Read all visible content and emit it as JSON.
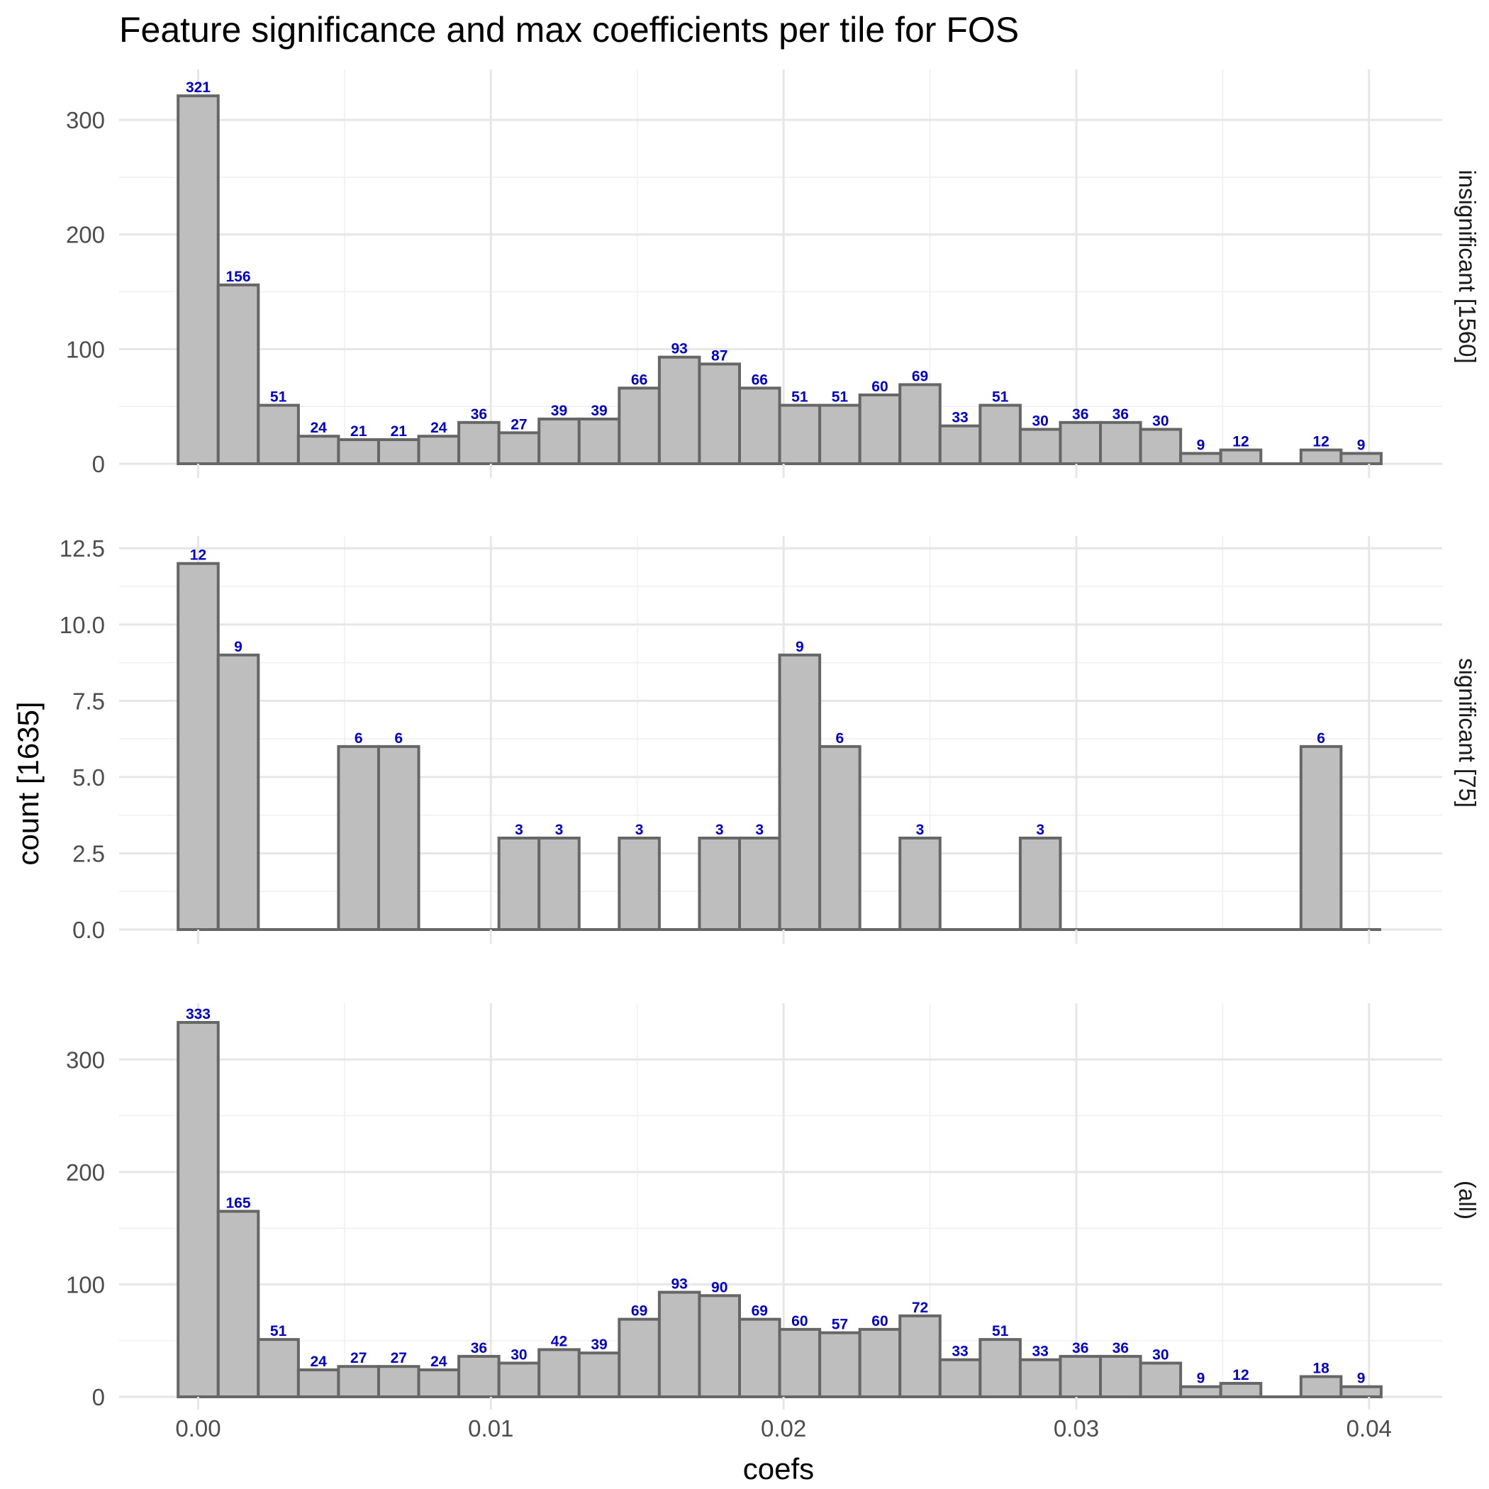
{
  "chart_data": {
    "type": "bar",
    "title": "Feature significance and max coefficients per tile for FOS",
    "xlabel": "coefs",
    "ylabel": "count [1635]",
    "x_ticks": [
      "0.00",
      "0.01",
      "0.02",
      "0.03",
      "0.04"
    ],
    "x_tick_values": [
      0,
      0.01,
      0.02,
      0.03,
      0.04
    ],
    "xlim": [
      -0.0027,
      0.0425
    ],
    "binwidth": 0.00137,
    "bin_centers": [
      0.0,
      0.00137,
      0.00274,
      0.00411,
      0.00548,
      0.00685,
      0.00822,
      0.00959,
      0.01096,
      0.01233,
      0.0137,
      0.01507,
      0.01644,
      0.01781,
      0.01918,
      0.02055,
      0.02192,
      0.02329,
      0.02466,
      0.02603,
      0.0274,
      0.02877,
      0.03014,
      0.03151,
      0.03288,
      0.03425,
      0.03562,
      0.03699,
      0.03836,
      0.03973
    ],
    "grid": true,
    "panels": [
      {
        "strip": "insignificant [1560]",
        "y_ticks": [
          "0",
          "100",
          "200",
          "300"
        ],
        "y_tick_values": [
          0,
          100,
          200,
          300
        ],
        "ylim": [
          0,
          344
        ],
        "values": [
          321,
          156,
          51,
          24,
          21,
          21,
          24,
          36,
          27,
          39,
          39,
          66,
          93,
          87,
          66,
          51,
          51,
          60,
          69,
          33,
          51,
          30,
          36,
          36,
          30,
          9,
          12,
          0,
          12,
          9
        ]
      },
      {
        "strip": "significant [75]",
        "y_ticks": [
          "0.0",
          "2.5",
          "5.0",
          "7.5",
          "10.0",
          "12.5"
        ],
        "y_tick_values": [
          0,
          2.5,
          5,
          7.5,
          10,
          12.5
        ],
        "ylim": [
          0,
          12.9
        ],
        "values": [
          12,
          9,
          0,
          0,
          6,
          6,
          0,
          0,
          3,
          3,
          0,
          3,
          0,
          3,
          3,
          9,
          6,
          0,
          3,
          0,
          0,
          3,
          0,
          0,
          0,
          0,
          0,
          0,
          6,
          0
        ]
      },
      {
        "strip": "(all)",
        "y_ticks": [
          "0",
          "100",
          "200",
          "300"
        ],
        "y_tick_values": [
          0,
          100,
          200,
          300
        ],
        "ylim": [
          0,
          350
        ],
        "values": [
          333,
          165,
          51,
          24,
          27,
          27,
          24,
          36,
          30,
          42,
          39,
          69,
          93,
          90,
          69,
          60,
          57,
          60,
          72,
          33,
          51,
          33,
          36,
          36,
          30,
          9,
          12,
          0,
          18,
          9
        ]
      }
    ],
    "colors": {
      "bar_fill": "#bebebe",
      "bar_stroke": "#666666",
      "label": "#0000cc",
      "grid": "#e6e6e6"
    }
  }
}
